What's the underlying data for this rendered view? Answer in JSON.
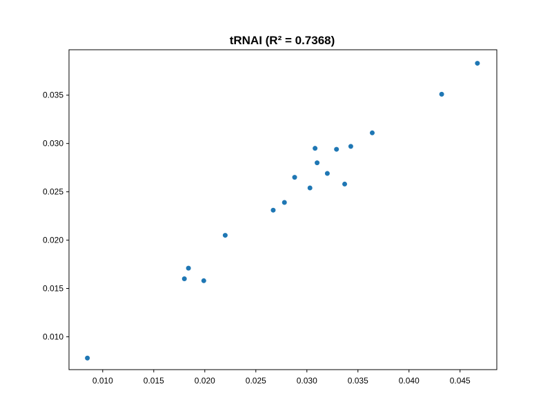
{
  "chart_data": {
    "type": "scatter",
    "title": "tRNAI (R² = 0.7368)",
    "xlabel": "",
    "ylabel": "",
    "xlim": [
      0.0067,
      0.0486
    ],
    "ylim": [
      0.0066,
      0.0397
    ],
    "xticks": [
      0.01,
      0.015,
      0.02,
      0.025,
      0.03,
      0.035,
      0.04,
      0.045
    ],
    "yticks": [
      0.01,
      0.015,
      0.02,
      0.025,
      0.03,
      0.035
    ],
    "xtick_labels": [
      "0.010",
      "0.015",
      "0.020",
      "0.025",
      "0.030",
      "0.035",
      "0.040",
      "0.045"
    ],
    "ytick_labels": [
      "0.010",
      "0.015",
      "0.020",
      "0.025",
      "0.030",
      "0.035"
    ],
    "grid": false,
    "marker_color": "#1f77b4",
    "points": [
      {
        "x": 0.0085,
        "y": 0.0078
      },
      {
        "x": 0.018,
        "y": 0.016
      },
      {
        "x": 0.0184,
        "y": 0.0171
      },
      {
        "x": 0.0199,
        "y": 0.0158
      },
      {
        "x": 0.022,
        "y": 0.0205
      },
      {
        "x": 0.0267,
        "y": 0.0231
      },
      {
        "x": 0.0278,
        "y": 0.0239
      },
      {
        "x": 0.0288,
        "y": 0.0265
      },
      {
        "x": 0.0303,
        "y": 0.0254
      },
      {
        "x": 0.0308,
        "y": 0.0295
      },
      {
        "x": 0.031,
        "y": 0.028
      },
      {
        "x": 0.032,
        "y": 0.0269
      },
      {
        "x": 0.0329,
        "y": 0.0294
      },
      {
        "x": 0.0337,
        "y": 0.0258
      },
      {
        "x": 0.0343,
        "y": 0.0297
      },
      {
        "x": 0.0364,
        "y": 0.0311
      },
      {
        "x": 0.0432,
        "y": 0.0351
      },
      {
        "x": 0.0467,
        "y": 0.0383
      }
    ]
  }
}
